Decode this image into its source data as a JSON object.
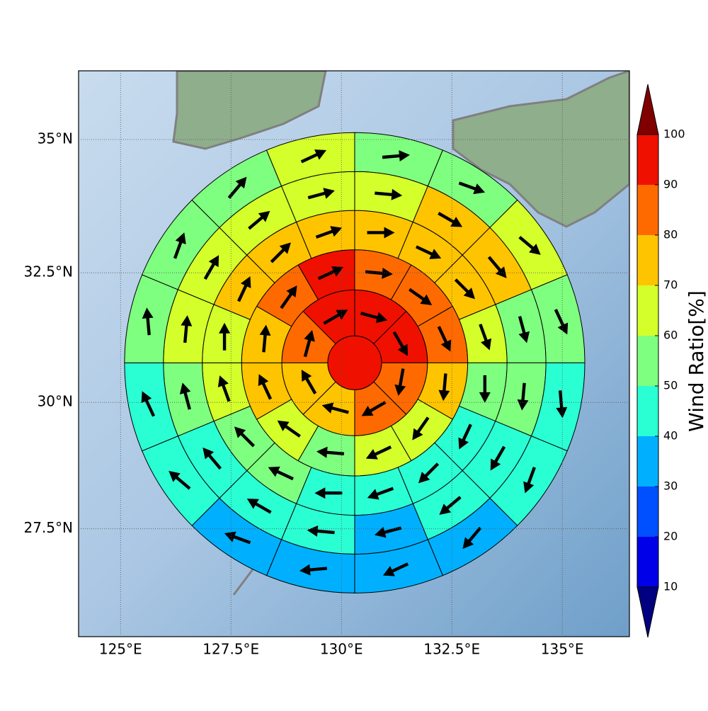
{
  "chart_data": {
    "type": "polar-sector-map",
    "xlim": [
      124.05,
      136.52
    ],
    "ylim": [
      25.32,
      36.26
    ],
    "xticks": [
      {
        "value": 125,
        "label": "125°E"
      },
      {
        "value": 127.5,
        "label": "127.5°E"
      },
      {
        "value": 130,
        "label": "130°E"
      },
      {
        "value": 132.5,
        "label": "132.5°E"
      },
      {
        "value": 135,
        "label": "135°E"
      }
    ],
    "yticks": [
      {
        "value": 27.5,
        "label": "27.5°N"
      },
      {
        "value": 30,
        "label": "30°N"
      },
      {
        "value": 32.5,
        "label": "32.5°N"
      },
      {
        "value": 35,
        "label": "35°N"
      }
    ],
    "grid": true,
    "center": [
      130.3,
      30.77
    ],
    "radii": [
      0.61,
      1.65,
      2.56,
      3.45,
      4.33,
      5.21
    ],
    "center_value": 95,
    "rings": [
      {
        "values": [
          95,
          95,
          85,
          85,
          75,
          75,
          85,
          95
        ],
        "directions": [
          105,
          150,
          190,
          240,
          285,
          330,
          15,
          60
        ]
      },
      {
        "values": [
          85,
          85,
          85,
          75,
          65,
          65,
          55,
          65,
          75,
          75,
          85,
          95
        ],
        "directions": [
          95,
          125,
          155,
          185,
          215,
          245,
          275,
          305,
          335,
          5,
          35,
          65
        ]
      },
      {
        "values": [
          75,
          75,
          75,
          65,
          55,
          45,
          45,
          45,
          45,
          55,
          55,
          65,
          65,
          75,
          75,
          75
        ],
        "directions": [
          90,
          115,
          135,
          160,
          180,
          205,
          225,
          250,
          270,
          295,
          315,
          340,
          0,
          25,
          45,
          70
        ]
      },
      {
        "values": [
          65,
          75,
          75,
          55,
          55,
          45,
          45,
          35,
          45,
          45,
          45,
          55,
          65,
          65,
          65,
          65
        ],
        "directions": [
          95,
          120,
          140,
          165,
          185,
          210,
          230,
          255,
          275,
          300,
          320,
          345,
          5,
          30,
          50,
          75
        ]
      },
      {
        "values": [
          55,
          55,
          65,
          55,
          45,
          45,
          35,
          35,
          35,
          35,
          45,
          45,
          55,
          55,
          55,
          65
        ],
        "directions": [
          85,
          110,
          130,
          155,
          175,
          200,
          220,
          245,
          265,
          290,
          310,
          335,
          355,
          20,
          40,
          65
        ]
      }
    ],
    "colorbar": {
      "label": "Wind Ratio[%]",
      "levels": [
        10,
        20,
        30,
        40,
        50,
        60,
        70,
        80,
        90,
        100
      ],
      "colors": [
        "#0000e8",
        "#0050ff",
        "#00b0ff",
        "#2affd4",
        "#7fff7f",
        "#d4ff2a",
        "#ffc400",
        "#ff6a00",
        "#f01000"
      ],
      "under": "#000080",
      "over": "#800000"
    }
  }
}
